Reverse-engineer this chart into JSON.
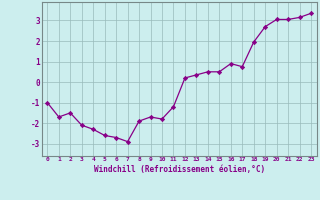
{
  "x": [
    0,
    1,
    2,
    3,
    4,
    5,
    6,
    7,
    8,
    9,
    10,
    11,
    12,
    13,
    14,
    15,
    16,
    17,
    18,
    19,
    20,
    21,
    22,
    23
  ],
  "y": [
    -1.0,
    -1.7,
    -1.5,
    -2.1,
    -2.3,
    -2.6,
    -2.7,
    -2.9,
    -1.9,
    -1.7,
    -1.8,
    -1.2,
    0.2,
    0.35,
    0.5,
    0.5,
    0.9,
    0.75,
    1.95,
    2.7,
    3.05,
    3.05,
    3.15,
    3.35
  ],
  "line_color": "#880088",
  "marker": "D",
  "marker_size": 2.2,
  "bg_color": "#cceeee",
  "grid_color": "#99bbbb",
  "xlabel": "Windchill (Refroidissement éolien,°C)",
  "tick_color": "#880088",
  "ylim": [
    -3.6,
    3.9
  ],
  "xlim": [
    -0.5,
    23.5
  ],
  "yticks": [
    -3,
    -2,
    -1,
    0,
    1,
    2,
    3
  ],
  "xtick_labels": [
    "0",
    "1",
    "2",
    "3",
    "4",
    "5",
    "6",
    "7",
    "8",
    "9",
    "10",
    "11",
    "12",
    "13",
    "14",
    "15",
    "16",
    "17",
    "18",
    "19",
    "20",
    "21",
    "22",
    "23"
  ]
}
